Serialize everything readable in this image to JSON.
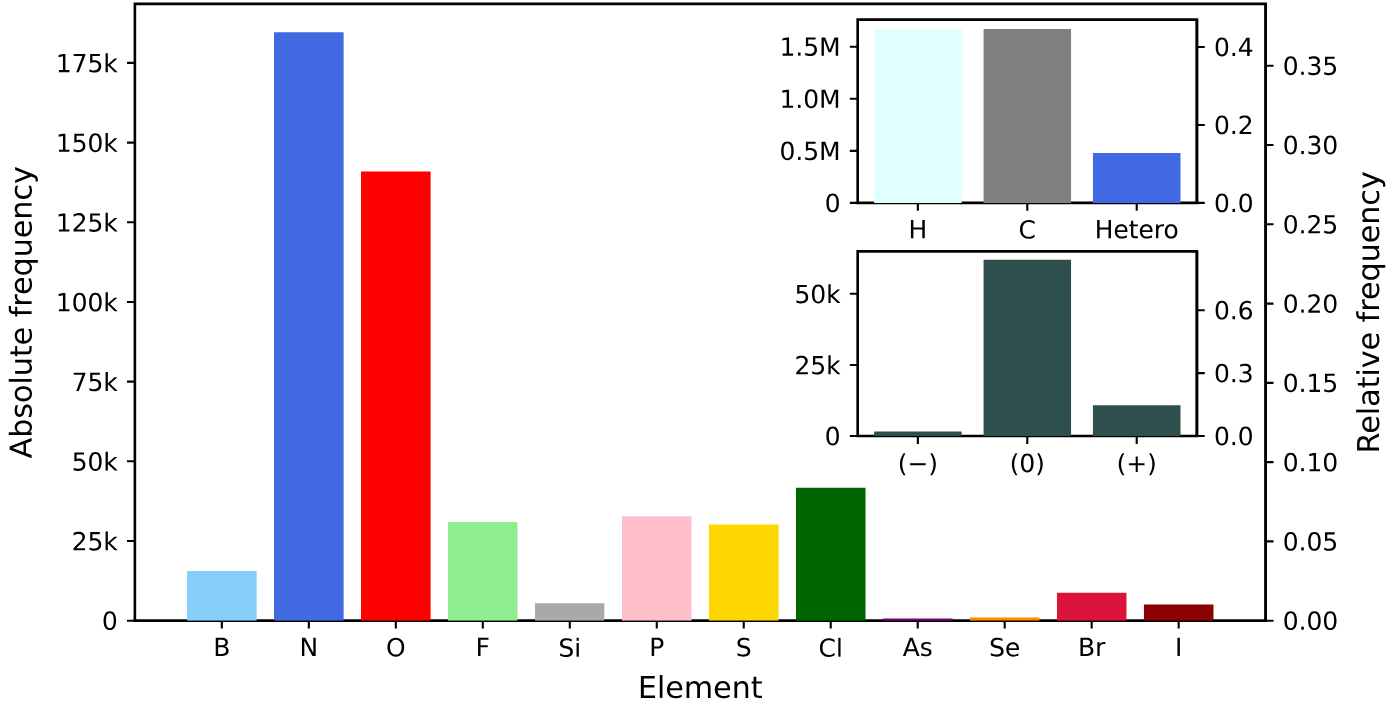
{
  "chart_data": [
    {
      "type": "bar",
      "xlabel": "Element",
      "ylabel": "Absolute frequency",
      "y2label": "Relative frequency",
      "categories": [
        "B",
        "N",
        "O",
        "F",
        "Si",
        "P",
        "S",
        "Cl",
        "As",
        "Se",
        "Br",
        "I"
      ],
      "values": [
        15600,
        184600,
        140900,
        31000,
        5500,
        32800,
        30200,
        41700,
        700,
        1000,
        8800,
        5100
      ],
      "colors": [
        "#87cefa",
        "#4169e1",
        "#ff0000",
        "#90ee90",
        "#a9a9a9",
        "#ffc0cb",
        "#ffd700",
        "#006400",
        "#800080",
        "#ff8c00",
        "#dc143c",
        "#8b0000"
      ],
      "ylim": [
        0,
        193500
      ],
      "yticks": [
        0,
        {
          "value": 25000,
          "label": "25k"
        },
        {
          "value": 50000,
          "label": "50k"
        },
        {
          "value": 75000,
          "label": "75k"
        },
        {
          "value": 100000,
          "label": "100k"
        },
        {
          "value": 125000,
          "label": "125k"
        },
        {
          "value": 150000,
          "label": "150k"
        },
        {
          "value": 175000,
          "label": "175k"
        }
      ],
      "y2lim": [
        0,
        0.389
      ],
      "y2ticks": [
        {
          "value": 0,
          "label": "0.00"
        },
        {
          "value": 0.05,
          "label": "0.05"
        },
        {
          "value": 0.1,
          "label": "0.10"
        },
        {
          "value": 0.15,
          "label": "0.15"
        },
        {
          "value": 0.2,
          "label": "0.20"
        },
        {
          "value": 0.25,
          "label": "0.25"
        },
        {
          "value": 0.3,
          "label": "0.30"
        },
        {
          "value": 0.35,
          "label": "0.35"
        }
      ]
    },
    {
      "type": "bar",
      "categories": [
        "H",
        "C",
        "Hetero"
      ],
      "values": [
        1670000,
        1670000,
        480000
      ],
      "colors": [
        "#e0ffff",
        "#808080",
        "#4169e1"
      ],
      "ylim": [
        0,
        1760000
      ],
      "yticks": [
        0,
        {
          "value": 500000,
          "label": "0.5M"
        },
        {
          "value": 1000000,
          "label": "1.0M"
        },
        {
          "value": 1500000,
          "label": "1.5M"
        }
      ],
      "y2lim": [
        0,
        0.47
      ],
      "y2ticks": [
        {
          "value": 0,
          "label": "0.0"
        },
        0.2,
        0.4
      ]
    },
    {
      "type": "bar",
      "categories": [
        "(−)",
        "(0)",
        "(+)"
      ],
      "values": [
        1600,
        62000,
        10800
      ],
      "colors": [
        "#2f4f4f",
        "#2f4f4f",
        "#2f4f4f"
      ],
      "ylim": [
        0,
        64900
      ],
      "yticks": [
        0,
        {
          "value": 25000,
          "label": "25k"
        },
        {
          "value": 50000,
          "label": "50k"
        }
      ],
      "y2lim": [
        0,
        0.88
      ],
      "y2ticks": [
        {
          "value": 0,
          "label": "0.0"
        },
        0.3,
        0.6
      ]
    }
  ]
}
